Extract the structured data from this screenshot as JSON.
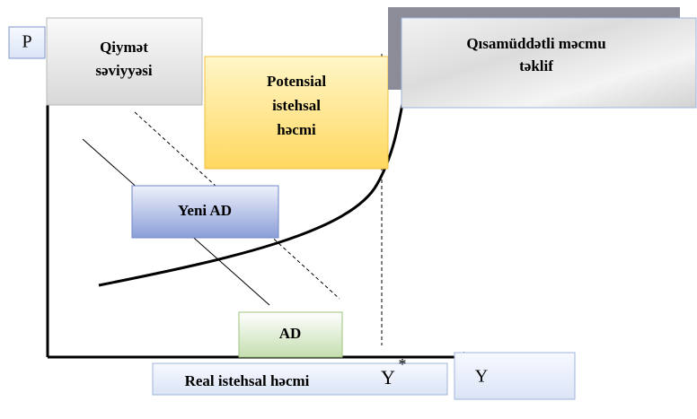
{
  "axes": {
    "y_label": "P",
    "y_title": [
      "Qiymət",
      "səviyyəsi"
    ],
    "x_label": "Y",
    "x_title": "Real istehsal həcmi",
    "x_star": {
      "base": "Y",
      "sup": "*"
    }
  },
  "labels": {
    "potential": [
      "Potensial",
      "istehsal",
      "həcmi"
    ],
    "sras": [
      "Qısamüddətli məcmu",
      "təklif"
    ],
    "new_ad": "Yeni AD",
    "ad": "AD"
  }
}
